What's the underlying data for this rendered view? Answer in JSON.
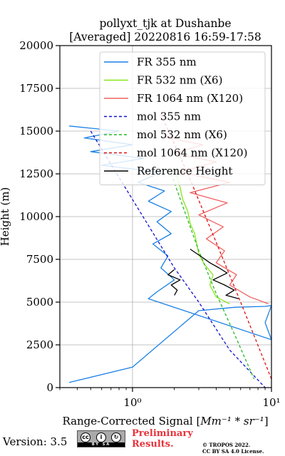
{
  "chart_data": {
    "type": "line",
    "title": "pollyxt_tjk at Dushanbe",
    "subtitle": "[Averaged] 20220816 16:59-17:58",
    "xlabel_prefix": "Range-Corrected Signal [",
    "xlabel_math": "Mm⁻¹ * sr⁻¹",
    "xlabel_suffix": "]",
    "ylabel": "Height (m)",
    "x_scale": "log",
    "xlim": [
      0.3,
      10
    ],
    "ylim": [
      0,
      20000
    ],
    "x_ticks": [
      {
        "value": 1,
        "label": "10⁰"
      },
      {
        "value": 10,
        "label": "10¹"
      }
    ],
    "y_ticks": [
      0,
      2500,
      5000,
      7500,
      10000,
      12500,
      15000,
      17500,
      20000
    ],
    "grid": true,
    "legend_position": "top-right",
    "series": [
      {
        "name": "FR 355 nm",
        "color": "#1a80e6",
        "style": "solid",
        "points": [
          [
            0.35,
            300
          ],
          [
            1.0,
            1200
          ],
          [
            3.0,
            4500
          ],
          [
            5.5,
            4700
          ],
          [
            9.0,
            4750
          ],
          [
            10,
            4800
          ],
          [
            9.0,
            3800
          ],
          [
            10,
            2800
          ],
          [
            1.3,
            5200
          ],
          [
            1.5,
            5600
          ],
          [
            2.0,
            6300
          ],
          [
            1.6,
            7000
          ],
          [
            1.8,
            7700
          ],
          [
            1.4,
            8400
          ],
          [
            1.9,
            9000
          ],
          [
            1.5,
            9700
          ],
          [
            1.9,
            10300
          ],
          [
            1.3,
            10900
          ],
          [
            1.7,
            11500
          ],
          [
            1.1,
            12000
          ],
          [
            1.6,
            12600
          ],
          [
            0.6,
            13000
          ],
          [
            1.2,
            13400
          ],
          [
            0.5,
            13800
          ],
          [
            1.0,
            14200
          ],
          [
            0.45,
            14600
          ],
          [
            0.8,
            15000
          ],
          [
            0.35,
            15300
          ]
        ]
      },
      {
        "name": "FR 532 nm (X6)",
        "color": "#88e61a",
        "style": "solid",
        "points": [
          [
            5.0,
            4900
          ],
          [
            4.0,
            5300
          ],
          [
            3.6,
            6000
          ],
          [
            3.8,
            6600
          ],
          [
            3.3,
            7200
          ],
          [
            3.0,
            7800
          ],
          [
            2.9,
            8400
          ],
          [
            2.8,
            9000
          ],
          [
            2.6,
            9600
          ],
          [
            2.5,
            10300
          ],
          [
            2.3,
            11000
          ],
          [
            2.2,
            11700
          ],
          [
            2.1,
            12300
          ],
          [
            1.9,
            12800
          ]
        ]
      },
      {
        "name": "FR 1064 nm (X120)",
        "color": "#f06060",
        "style": "solid",
        "points": [
          [
            9.5,
            4900
          ],
          [
            7.0,
            5300
          ],
          [
            5.0,
            6000
          ],
          [
            5.6,
            6600
          ],
          [
            4.0,
            7300
          ],
          [
            4.6,
            8000
          ],
          [
            3.4,
            8700
          ],
          [
            4.5,
            9400
          ],
          [
            3.0,
            10100
          ],
          [
            4.8,
            10800
          ],
          [
            2.6,
            11400
          ],
          [
            5.0,
            12000
          ],
          [
            2.2,
            12600
          ],
          [
            4.0,
            13200
          ],
          [
            2.0,
            13700
          ],
          [
            3.2,
            14200
          ],
          [
            1.6,
            14700
          ]
        ]
      },
      {
        "name": "mol 355 nm",
        "color": "#1010d0",
        "style": "dashed",
        "points": [
          [
            0.5,
            15000
          ],
          [
            1.0,
            11000
          ],
          [
            2.0,
            7000
          ],
          [
            3.0,
            5000
          ],
          [
            5.0,
            2200
          ],
          [
            9.0,
            0
          ]
        ]
      },
      {
        "name": "mol 532 nm (X6)",
        "color": "#22bb22",
        "style": "dashed",
        "points": [
          [
            1.9,
            12500
          ],
          [
            3.0,
            8000
          ],
          [
            4.0,
            5500
          ],
          [
            5.5,
            3000
          ],
          [
            7.5,
            500
          ]
        ]
      },
      {
        "name": "mol 1064 nm (X120)",
        "color": "#e01010",
        "style": "dashed",
        "points": [
          [
            1.6,
            16000
          ],
          [
            2.5,
            12500
          ],
          [
            4.0,
            8500
          ],
          [
            6.0,
            5000
          ],
          [
            10,
            500
          ]
        ]
      },
      {
        "name": "Reference Height",
        "color": "#000000",
        "style": "solid",
        "points": [
          [
            2.6,
            8100
          ],
          [
            3.2,
            7600
          ],
          [
            3.6,
            7300
          ],
          [
            4.2,
            7000
          ],
          [
            4.8,
            6700
          ],
          [
            3.8,
            6300
          ],
          [
            4.6,
            6000
          ],
          [
            5.4,
            5700
          ],
          [
            4.7,
            5400
          ],
          [
            5.8,
            5200
          ]
        ]
      }
    ],
    "reference_355": {
      "color": "#000000",
      "points": [
        [
          2.0,
          6900
        ],
        [
          1.8,
          6600
        ],
        [
          2.2,
          6300
        ],
        [
          1.9,
          6000
        ],
        [
          2.1,
          5700
        ],
        [
          2.0,
          5400
        ]
      ]
    }
  },
  "footer": {
    "version": "Version: 3.5",
    "cc_label": "BY   SA",
    "preliminary_line1": "Preliminary",
    "preliminary_line2": "Results.",
    "copyright_line1": "© TROPOS 2022.",
    "copyright_line2": "CC BY SA 4.0 License."
  }
}
